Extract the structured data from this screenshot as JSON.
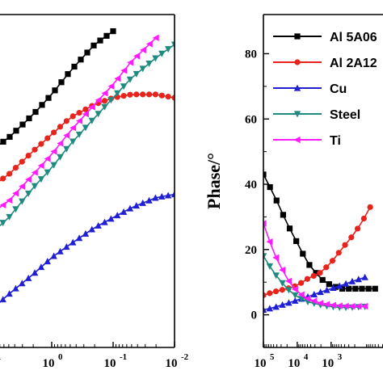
{
  "chart_data": [
    {
      "type": "scatter",
      "x_scale": "log",
      "x_reversed": true,
      "xlim": [
        0.01,
        10
      ],
      "ylim": [
        -1,
        9
      ],
      "xlabel": "",
      "ylabel": "",
      "x_ticks": [
        {
          "value": 10,
          "label": "10"
        },
        {
          "value": 1,
          "label": "10"
        },
        {
          "value": 0.1,
          "label": "10"
        },
        {
          "value": 0.01,
          "label": "10"
        }
      ],
      "x_tick_exponents": [
        "1",
        "0",
        "-1",
        "-2"
      ],
      "series": [
        {
          "color": "#000000",
          "marker": "square",
          "points": [
            [
              10,
              4.9
            ],
            [
              5,
              5.3
            ],
            [
              2,
              6.0
            ],
            [
              1,
              6.6
            ],
            [
              0.5,
              7.3
            ],
            [
              0.2,
              8.1
            ],
            [
              0.1,
              8.5
            ]
          ]
        },
        {
          "color": "#e8231b",
          "marker": "circle",
          "points": [
            [
              10,
              3.8
            ],
            [
              5,
              4.2
            ],
            [
              2,
              4.9
            ],
            [
              1,
              5.4
            ],
            [
              0.5,
              5.9
            ],
            [
              0.2,
              6.3
            ],
            [
              0.1,
              6.5
            ],
            [
              0.05,
              6.6
            ],
            [
              0.02,
              6.6
            ],
            [
              0.01,
              6.5
            ]
          ]
        },
        {
          "color": "#1f1fd6",
          "marker": "triangle-up",
          "points": [
            [
              10,
              0.1
            ],
            [
              5,
              0.6
            ],
            [
              2,
              1.2
            ],
            [
              1,
              1.7
            ],
            [
              0.5,
              2.1
            ],
            [
              0.2,
              2.6
            ],
            [
              0.1,
              2.9
            ],
            [
              0.05,
              3.2
            ],
            [
              0.02,
              3.5
            ],
            [
              0.01,
              3.6
            ]
          ]
        },
        {
          "color": "#1f8a80",
          "marker": "triangle-down",
          "points": [
            [
              10,
              2.4
            ],
            [
              5,
              2.9
            ],
            [
              2,
              3.8
            ],
            [
              1,
              4.4
            ],
            [
              0.5,
              5.1
            ],
            [
              0.2,
              5.9
            ],
            [
              0.1,
              6.5
            ],
            [
              0.05,
              7.1
            ],
            [
              0.02,
              7.7
            ],
            [
              0.01,
              8.1
            ]
          ]
        },
        {
          "color": "#ff1aff",
          "marker": "triangle-left",
          "points": [
            [
              10,
              3.0
            ],
            [
              5,
              3.4
            ],
            [
              2,
              4.2
            ],
            [
              1,
              4.8
            ],
            [
              0.5,
              5.5
            ],
            [
              0.2,
              6.3
            ],
            [
              0.1,
              6.9
            ],
            [
              0.05,
              7.6
            ],
            [
              0.02,
              8.3
            ]
          ]
        }
      ]
    },
    {
      "type": "scatter",
      "x_scale": "log",
      "x_reversed": true,
      "xlim": [
        0.5,
        100000
      ],
      "ylim": [
        -10,
        92
      ],
      "xlabel": "",
      "ylabel": "Phase/°",
      "x_ticks": [
        {
          "value": 100000,
          "label": "10"
        },
        {
          "value": 10000,
          "label": "10"
        },
        {
          "value": 1000,
          "label": "10"
        }
      ],
      "x_tick_exponents": [
        "5",
        "4",
        "3"
      ],
      "y_ticks": [
        0,
        20,
        40,
        60,
        80
      ],
      "legend_position": "top-right",
      "series": [
        {
          "name": "Al 5A06",
          "color": "#000000",
          "marker": "square",
          "points": [
            [
              100000,
              43
            ],
            [
              50000,
              37
            ],
            [
              20000,
              28
            ],
            [
              10000,
              22
            ],
            [
              5000,
              16
            ],
            [
              2000,
              11
            ],
            [
              1000,
              9
            ],
            [
              500,
              8
            ],
            [
              200,
              8
            ],
            [
              100,
              8
            ],
            [
              50,
              8
            ]
          ]
        },
        {
          "name": "Al 2A12",
          "color": "#e8231b",
          "marker": "circle",
          "points": [
            [
              100000,
              6
            ],
            [
              50000,
              7
            ],
            [
              20000,
              8
            ],
            [
              10000,
              9
            ],
            [
              5000,
              11
            ],
            [
              2000,
              13
            ],
            [
              1000,
              16
            ],
            [
              500,
              20
            ],
            [
              200,
              25
            ],
            [
              100,
              30
            ],
            [
              70,
              33
            ]
          ]
        },
        {
          "name": "Cu",
          "color": "#1f1fd6",
          "marker": "triangle-up",
          "points": [
            [
              100000,
              1.5
            ],
            [
              50000,
              2.2
            ],
            [
              20000,
              3.5
            ],
            [
              10000,
              4.5
            ],
            [
              5000,
              5.5
            ],
            [
              2000,
              7
            ],
            [
              1000,
              8
            ],
            [
              500,
              9
            ],
            [
              200,
              10.5
            ],
            [
              100,
              11.5
            ]
          ]
        },
        {
          "name": "Steel",
          "color": "#1f8a80",
          "marker": "triangle-down",
          "points": [
            [
              100000,
              18
            ],
            [
              50000,
              13
            ],
            [
              20000,
              8
            ],
            [
              10000,
              5.5
            ],
            [
              5000,
              4
            ],
            [
              2000,
              3
            ],
            [
              1000,
              2.5
            ],
            [
              500,
              2.2
            ],
            [
              200,
              2.3
            ],
            [
              100,
              2.5
            ]
          ]
        },
        {
          "name": "Ti",
          "color": "#ff1aff",
          "marker": "triangle-left",
          "points": [
            [
              100000,
              28
            ],
            [
              50000,
              19
            ],
            [
              20000,
              11
            ],
            [
              10000,
              7
            ],
            [
              5000,
              5
            ],
            [
              2000,
              3.5
            ],
            [
              1000,
              3
            ],
            [
              500,
              2.7
            ],
            [
              200,
              2.6
            ],
            [
              100,
              2.6
            ]
          ]
        }
      ]
    }
  ]
}
